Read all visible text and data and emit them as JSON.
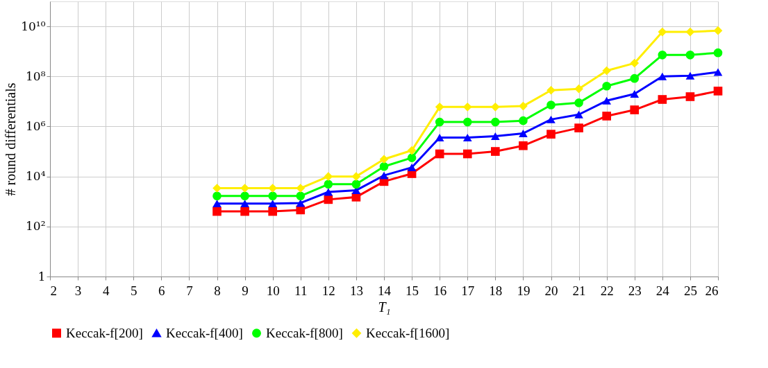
{
  "chart_data": {
    "type": "line",
    "xlabel": "T₁",
    "ylabel": "# round differentials",
    "x": [
      8,
      9,
      10,
      11,
      12,
      13,
      14,
      15,
      16,
      17,
      18,
      19,
      20,
      21,
      22,
      23,
      24,
      25,
      26
    ],
    "series": [
      {
        "name": "Keccak-f[200]",
        "color": "#ff0000",
        "marker": "square",
        "values": [
          400,
          400,
          400,
          460,
          1200,
          1500,
          6300,
          13000,
          80000,
          80000,
          100000,
          170000,
          490000,
          870000,
          2600000,
          4600000,
          12000000,
          15500000,
          26000000
        ]
      },
      {
        "name": "Keccak-f[400]",
        "color": "#0000ff",
        "marker": "triangle",
        "values": [
          830,
          830,
          830,
          870,
          2400,
          2800,
          11000,
          23000,
          360000,
          360000,
          410000,
          530000,
          1900000,
          3000000,
          10700000,
          20000000,
          100000000,
          107000000,
          150000000
        ]
      },
      {
        "name": "Keccak-f[800]",
        "color": "#00ff00",
        "marker": "circle",
        "values": [
          1660,
          1660,
          1660,
          1660,
          4900,
          4900,
          25000,
          56000,
          1500000,
          1500000,
          1500000,
          1700000,
          7200000,
          8800000,
          41000000,
          83000000,
          720000000,
          720000000,
          880000000
        ]
      },
      {
        "name": "Keccak-f[1600]",
        "color": "#ffee00",
        "marker": "diamond",
        "values": [
          3400,
          3400,
          3400,
          3400,
          10000,
          10000,
          49000,
          110000,
          6000000,
          6000000,
          6000000,
          6500000,
          28000000,
          32000000,
          170000000,
          340000000,
          6000000000,
          6000000000,
          6800000000
        ]
      }
    ],
    "xlim": [
      2,
      26
    ],
    "xticks": [
      2,
      3,
      4,
      5,
      6,
      7,
      8,
      9,
      10,
      11,
      12,
      13,
      14,
      15,
      16,
      17,
      18,
      19,
      20,
      21,
      22,
      23,
      24,
      25,
      26
    ],
    "ylim": [
      1,
      100000000000
    ],
    "log": true,
    "yticks": [
      1,
      {
        "value": 100,
        "label": "10²"
      },
      {
        "value": 10000,
        "label": "10⁴"
      },
      {
        "value": 1000000,
        "label": "10⁶"
      },
      {
        "value": 100000000,
        "label": "10⁸"
      },
      {
        "value": 10000000000,
        "label": "10¹⁰"
      }
    ],
    "grid": true,
    "legend": "bottom",
    "line_style": "solid"
  }
}
